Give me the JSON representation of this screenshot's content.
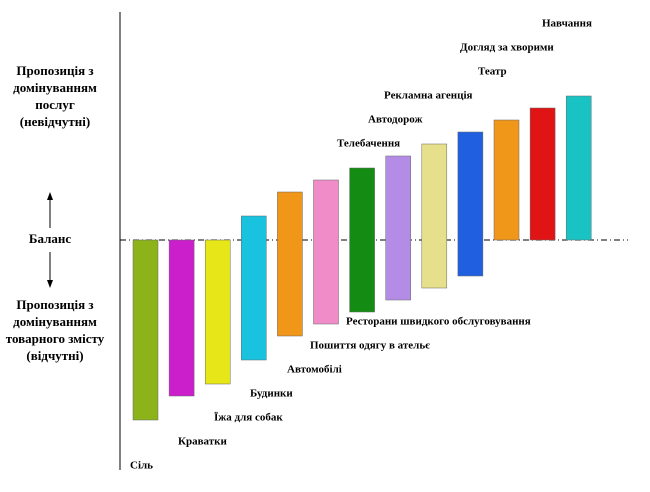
{
  "chart_data": {
    "type": "floating-bar",
    "balance_label": "Баланс",
    "upper_label": "Пропозиція з домінуванням послуг (невідчутні)",
    "lower_label": "Пропозиція з домінуванням товарного змісту (відчутні)",
    "categories": [
      "Сіль",
      "Краватки",
      "Їжа для собак",
      "Будинки",
      "Автомобілі",
      "Пошиття одягу в ательє",
      "Ресторани швидкого обслуговування",
      "Телебачення",
      "Автодорож",
      "Рекламна агенція",
      "Театр",
      "Догляд за хворими",
      "Навчання"
    ],
    "low": [
      -15,
      -13,
      -12,
      -10,
      -8,
      -7,
      -6,
      -5,
      -4,
      -3,
      0,
      0,
      0
    ],
    "high": [
      0,
      0,
      0,
      2,
      4,
      5,
      6,
      7,
      8,
      9,
      10,
      11,
      12
    ],
    "colors": [
      "#8cb31a",
      "#cc1fcc",
      "#e6e619",
      "#19c3e0",
      "#f09619",
      "#f08cc8",
      "#148c14",
      "#b48ce6",
      "#e6e08c",
      "#2060e0",
      "#f09619",
      "#e01414",
      "#19c3c3"
    ],
    "ylim": [
      -19,
      19
    ]
  }
}
